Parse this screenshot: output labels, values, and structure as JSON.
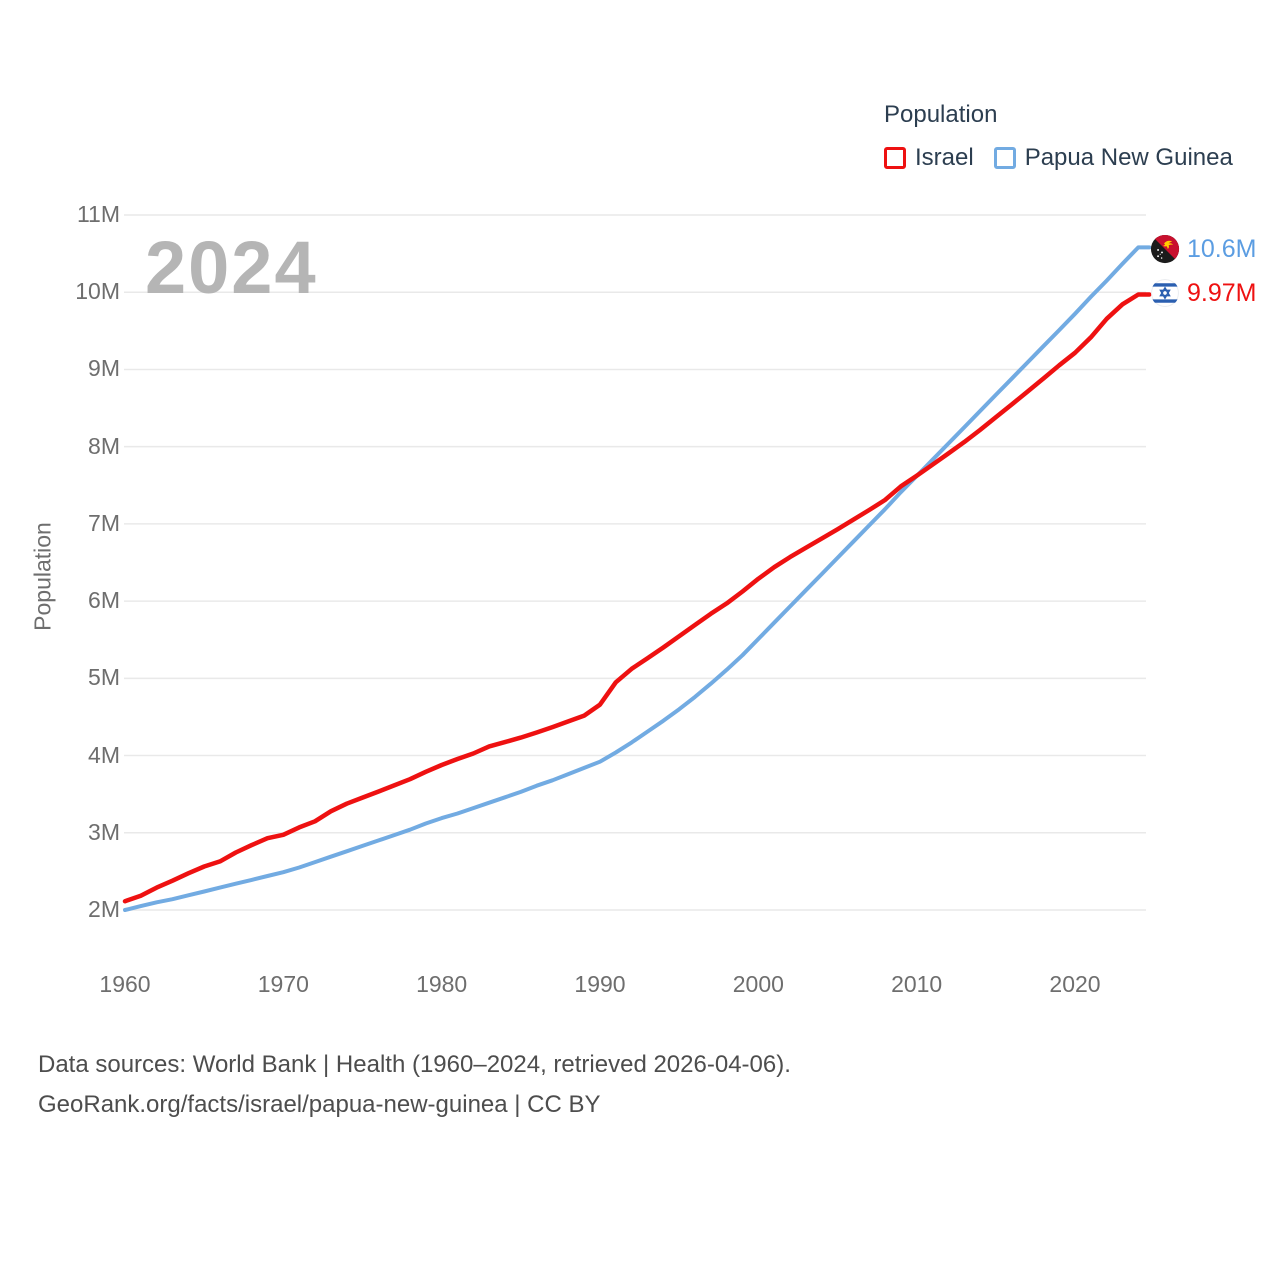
{
  "legend": {
    "title": "Population",
    "items": [
      {
        "label": "Israel",
        "color": "#ee1111"
      },
      {
        "label": "Papua New Guinea",
        "color": "#72abe2"
      }
    ]
  },
  "watermark_year": "2024",
  "y_axis_title": "Population",
  "end_labels": [
    {
      "series": "Papua New Guinea",
      "value_label": "10.6M",
      "color": "#5b9de2",
      "flag": "papua-new-guinea-flag"
    },
    {
      "series": "Israel",
      "value_label": "9.97M",
      "color": "#ee1111",
      "flag": "israel-flag"
    }
  ],
  "footer": {
    "line1": "Data sources: World Bank | Health (1960–2024, retrieved 2026-04-06).",
    "line2": "GeoRank.org/facts/israel/papua-new-guinea | CC BY"
  },
  "chart_data": {
    "type": "line",
    "title": "Population",
    "xlabel": "",
    "ylabel": "Population",
    "units": "millions",
    "grid": true,
    "legend_position": "top-right",
    "ylim": [
      2,
      11
    ],
    "xlim": [
      1960,
      2024
    ],
    "y_ticks": [
      {
        "value": 2,
        "label": "2M"
      },
      {
        "value": 3,
        "label": "3M"
      },
      {
        "value": 4,
        "label": "4M"
      },
      {
        "value": 5,
        "label": "5M"
      },
      {
        "value": 6,
        "label": "6M"
      },
      {
        "value": 7,
        "label": "7M"
      },
      {
        "value": 8,
        "label": "8M"
      },
      {
        "value": 9,
        "label": "9M"
      },
      {
        "value": 10,
        "label": "10M"
      },
      {
        "value": 11,
        "label": "11M"
      }
    ],
    "x_ticks": [
      1960,
      1970,
      1980,
      1990,
      2000,
      2010,
      2020
    ],
    "x": [
      1960,
      1961,
      1962,
      1963,
      1964,
      1965,
      1966,
      1967,
      1968,
      1969,
      1970,
      1971,
      1972,
      1973,
      1974,
      1975,
      1976,
      1977,
      1978,
      1979,
      1980,
      1981,
      1982,
      1983,
      1984,
      1985,
      1986,
      1987,
      1988,
      1989,
      1990,
      1991,
      1992,
      1993,
      1994,
      1995,
      1996,
      1997,
      1998,
      1999,
      2000,
      2001,
      2002,
      2003,
      2004,
      2005,
      2006,
      2007,
      2008,
      2009,
      2010,
      2011,
      2012,
      2013,
      2014,
      2015,
      2016,
      2017,
      2018,
      2019,
      2020,
      2021,
      2022,
      2023,
      2024
    ],
    "series": [
      {
        "name": "Israel",
        "color": "#ee1111",
        "final_label": "9.97M",
        "values": [
          2.114,
          2.185,
          2.29,
          2.379,
          2.475,
          2.563,
          2.629,
          2.745,
          2.841,
          2.93,
          2.974,
          3.069,
          3.148,
          3.278,
          3.377,
          3.455,
          3.533,
          3.613,
          3.694,
          3.789,
          3.878,
          3.956,
          4.027,
          4.119,
          4.174,
          4.233,
          4.299,
          4.369,
          4.442,
          4.518,
          4.66,
          4.949,
          5.123,
          5.261,
          5.399,
          5.545,
          5.692,
          5.836,
          5.971,
          6.125,
          6.289,
          6.439,
          6.57,
          6.69,
          6.809,
          6.93,
          7.054,
          7.18,
          7.309,
          7.486,
          7.624,
          7.766,
          7.911,
          8.059,
          8.216,
          8.38,
          8.546,
          8.713,
          8.882,
          9.054,
          9.216,
          9.415,
          9.656,
          9.843,
          9.971
        ]
      },
      {
        "name": "Papua New Guinea",
        "color": "#72abe2",
        "final_label": "10.6M",
        "values": [
          2.0,
          2.05,
          2.1,
          2.14,
          2.19,
          2.24,
          2.29,
          2.34,
          2.39,
          2.44,
          2.49,
          2.55,
          2.62,
          2.69,
          2.76,
          2.83,
          2.9,
          2.97,
          3.04,
          3.12,
          3.19,
          3.25,
          3.32,
          3.39,
          3.46,
          3.53,
          3.61,
          3.68,
          3.76,
          3.84,
          3.92,
          4.04,
          4.17,
          4.31,
          4.45,
          4.6,
          4.76,
          4.93,
          5.11,
          5.3,
          5.51,
          5.72,
          5.93,
          6.14,
          6.35,
          6.56,
          6.77,
          6.98,
          7.19,
          7.41,
          7.62,
          7.83,
          8.04,
          8.25,
          8.46,
          8.67,
          8.88,
          9.09,
          9.3,
          9.51,
          9.72,
          9.94,
          10.15,
          10.37,
          10.58
        ]
      }
    ]
  }
}
